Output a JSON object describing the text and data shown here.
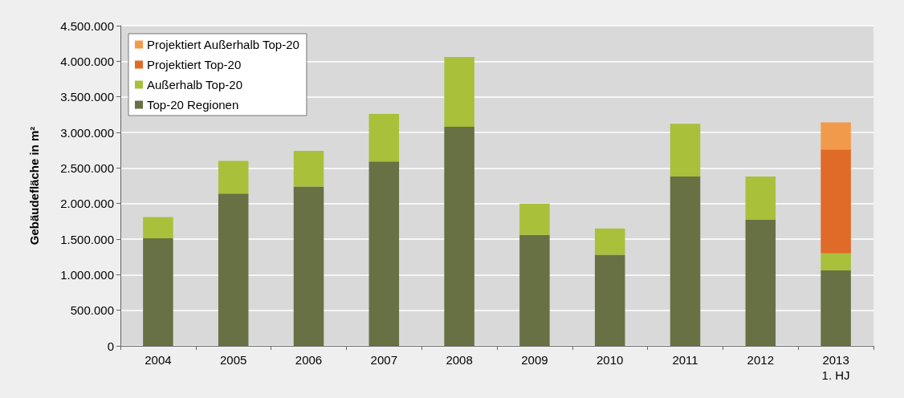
{
  "chart_data": {
    "type": "bar",
    "stacked": true,
    "ylabel": "Gebäudefläche in m²",
    "categories": [
      "2004",
      "2005",
      "2006",
      "2007",
      "2008",
      "2009",
      "2010",
      "2011",
      "2012",
      "2013\n1. HJ"
    ],
    "series": [
      {
        "name": "Top-20 Regionen",
        "color": "#677143",
        "values": [
          1510000,
          2140000,
          2240000,
          2590000,
          3080000,
          1560000,
          1280000,
          2380000,
          1770000,
          1060000
        ]
      },
      {
        "name": "Außerhalb Top-20",
        "color": "#a8c03a",
        "values": [
          300000,
          460000,
          500000,
          670000,
          980000,
          440000,
          370000,
          740000,
          610000,
          240000
        ]
      },
      {
        "name": "Projektiert Top-20",
        "color": "#e06a28",
        "values": [
          null,
          null,
          null,
          null,
          null,
          null,
          null,
          null,
          null,
          1460000
        ]
      },
      {
        "name": "Projektiert Außerhalb Top-20",
        "color": "#f29a4c",
        "values": [
          null,
          null,
          null,
          null,
          null,
          null,
          null,
          null,
          null,
          380000
        ]
      }
    ],
    "ylim": [
      0,
      4500000
    ],
    "yticks": [
      {
        "value": 0,
        "label": "0"
      },
      {
        "value": 500000,
        "label": "500.000"
      },
      {
        "value": 1000000,
        "label": "1.000.000"
      },
      {
        "value": 1500000,
        "label": "1.500.000"
      },
      {
        "value": 2000000,
        "label": "2.000.000"
      },
      {
        "value": 2500000,
        "label": "2.500.000"
      },
      {
        "value": 3000000,
        "label": "3.000.000"
      },
      {
        "value": 3500000,
        "label": "3.500.000"
      },
      {
        "value": 4000000,
        "label": "4.000.000"
      },
      {
        "value": 4500000,
        "label": "4.500.000"
      }
    ],
    "grid": "y",
    "legend": "top left"
  }
}
